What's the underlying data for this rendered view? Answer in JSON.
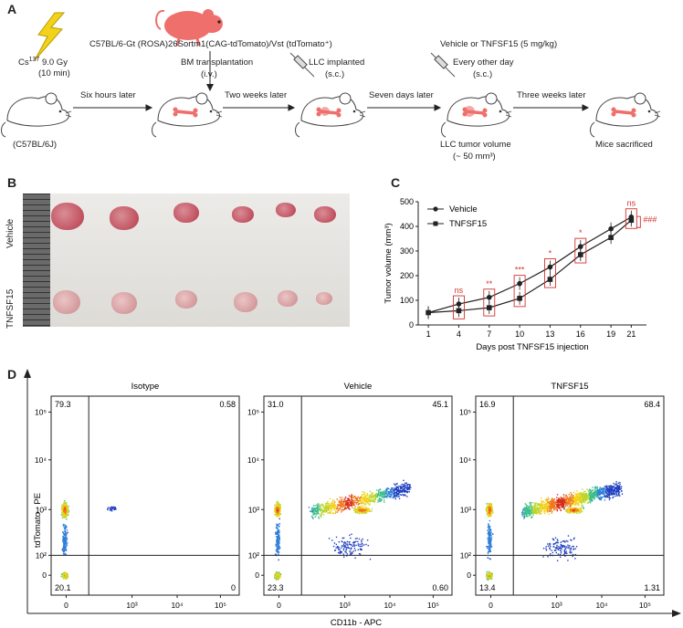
{
  "panels": {
    "a": "A",
    "b": "B",
    "c": "C",
    "d": "D"
  },
  "panel_a": {
    "strain_line": "C57BL/6-Gt (ROSA)26Sortm1(CAG-tdTomato)/Vst (tdTomato⁺)",
    "irradiation_source": "Cs",
    "irradiation_isotope": "137",
    "irradiation_dose": "9.0 Gy",
    "irradiation_time": "(10 min)",
    "recipient": "(C57BL/6J)",
    "step1": "Six hours later",
    "bm_transplant": "BM transplantation",
    "bm_route": "(i.v.)",
    "step2": "Two weeks later",
    "llc_implant": "LLC implanted",
    "llc_route": "(s.c.)",
    "step3": "Seven days later",
    "treatment": "Vehicle or TNFSF15 (5 mg/kg)",
    "treatment_freq": "Every other day",
    "treatment_route": "(s.c.)",
    "tumor_volume": "LLC tumor volume",
    "tumor_volume_value": "(~ 50 mm³)",
    "step4": "Three weeks later",
    "sacrifice": "Mice sacrificed"
  },
  "panel_b": {
    "row1_label": "Vehicle",
    "row2_label": "TNFSF15",
    "tumor_color_vehicle": "#b73a4a",
    "tumor_color_tnfsf15": "#c98a8e"
  },
  "chart_data": [
    {
      "type": "line",
      "title": "",
      "xlabel": "Days post TNFSF15 injection",
      "ylabel": "Tumor volume (mm³)",
      "x": [
        1,
        4,
        7,
        10,
        13,
        16,
        19,
        21
      ],
      "xticks": [
        "1",
        "4",
        "7",
        "10",
        "13",
        "16",
        "19",
        "21"
      ],
      "yticks": [
        "0",
        "100",
        "200",
        "300",
        "400",
        "500"
      ],
      "ylim": [
        0,
        500
      ],
      "series": [
        {
          "name": "Vehicle",
          "marker": "circle",
          "values": [
            50,
            85,
            112,
            168,
            235,
            318,
            390,
            438
          ]
        },
        {
          "name": "TNFSF15",
          "marker": "square",
          "values": [
            50,
            58,
            70,
            108,
            185,
            285,
            355,
            425
          ]
        }
      ],
      "significance": [
        "ns",
        "**",
        "***",
        "*",
        "*",
        "ns"
      ],
      "significance_x": [
        4,
        7,
        10,
        13,
        16,
        21
      ],
      "hash_annotation": "###",
      "legend": "top-left"
    },
    {
      "type": "scatter",
      "xlabel": "CD11b - APC",
      "ylabel": "tdTomato - PE",
      "xticks": [
        "0",
        "10³",
        "10⁴",
        "10⁵"
      ],
      "yticks": [
        "0",
        "10²",
        "10³",
        "10⁴",
        "10⁵"
      ],
      "plots": [
        {
          "name": "Isotype",
          "quadrants": {
            "ul": "79.3",
            "ur": "0.58",
            "ll": "20.1",
            "lr": "0"
          }
        },
        {
          "name": "Vehicle",
          "quadrants": {
            "ul": "31.0",
            "ur": "45.1",
            "ll": "23.3",
            "lr": "0.60"
          }
        },
        {
          "name": "TNFSF15",
          "quadrants": {
            "ul": "16.9",
            "ur": "68.4",
            "ll": "13.4",
            "lr": "1.31"
          }
        }
      ]
    }
  ],
  "colors": {
    "accent_red": "#d4312e",
    "mouse_red": "#ee6f6b",
    "bolt": "#f3d21b"
  }
}
